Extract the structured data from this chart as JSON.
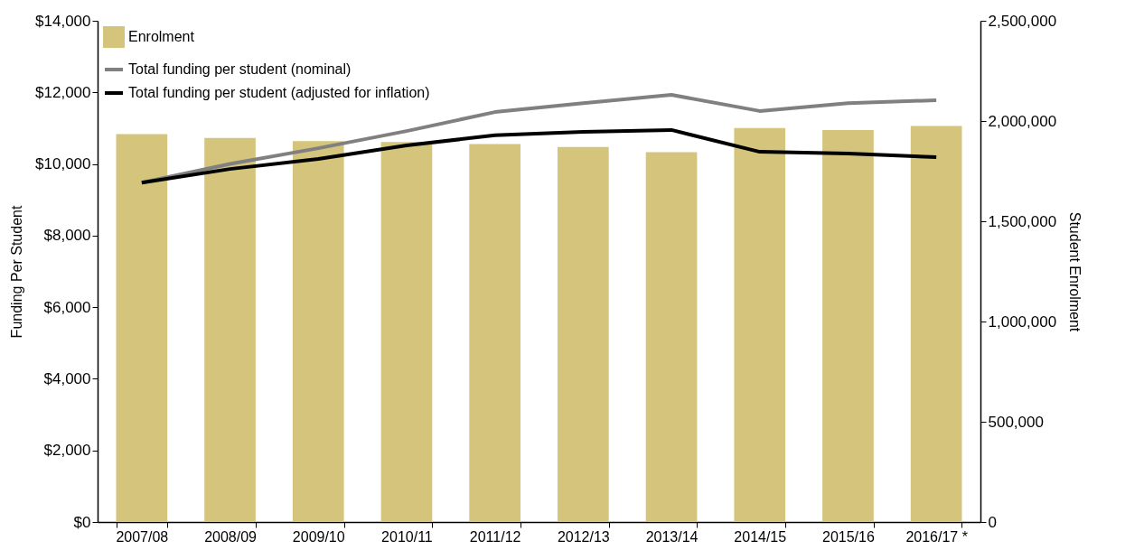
{
  "chart_data": {
    "type": "bar",
    "xlabel": null,
    "ylabel": "Funding Per Student",
    "y2label": "Student Enrolment",
    "categories": [
      "2007/08",
      "2008/09",
      "2009/10",
      "2010/11",
      "2011/12",
      "2012/13",
      "2013/14",
      "2014/15",
      "2015/16",
      "2016/17 *"
    ],
    "series": [
      {
        "name": "Enrolment",
        "axis": "y2",
        "color": "#d4c47c",
        "values": [
          1935000,
          1915000,
          1900000,
          1895000,
          1885000,
          1870000,
          1845000,
          1965000,
          1955000,
          1975000
        ]
      },
      {
        "name": "Total funding per student (nominal)",
        "type": "line",
        "color": "#808080",
        "values": [
          9480,
          10000,
          10440,
          10920,
          11450,
          11700,
          11930,
          11480,
          11700,
          11780
        ]
      },
      {
        "name": "Total funding per student (adjusted for inflation)",
        "type": "line",
        "color": "#000000",
        "values": [
          9480,
          9860,
          10140,
          10520,
          10800,
          10900,
          10950,
          10340,
          10290,
          10190
        ]
      }
    ],
    "ylim": [
      0,
      14000
    ],
    "yticks": [
      {
        "value": 0,
        "label": "$0"
      },
      {
        "value": 2000,
        "label": "$2,000"
      },
      {
        "value": 4000,
        "label": "$4,000"
      },
      {
        "value": 6000,
        "label": "$6,000"
      },
      {
        "value": 8000,
        "label": "$8,000"
      },
      {
        "value": 10000,
        "label": "$10,000"
      },
      {
        "value": 12000,
        "label": "$12,000"
      },
      {
        "value": 14000,
        "label": "$14,000"
      }
    ],
    "y2lim": [
      0,
      2500000
    ],
    "y2ticks": [
      {
        "value": 0,
        "label": "0"
      },
      {
        "value": 500000,
        "label": "500,000"
      },
      {
        "value": 1000000,
        "label": "1,000,000"
      },
      {
        "value": 1500000,
        "label": "1,500,000"
      },
      {
        "value": 2000000,
        "label": "2,000,000"
      },
      {
        "value": 2500000,
        "label": "2,500,000"
      }
    ],
    "grid": false,
    "legend": "top left"
  }
}
